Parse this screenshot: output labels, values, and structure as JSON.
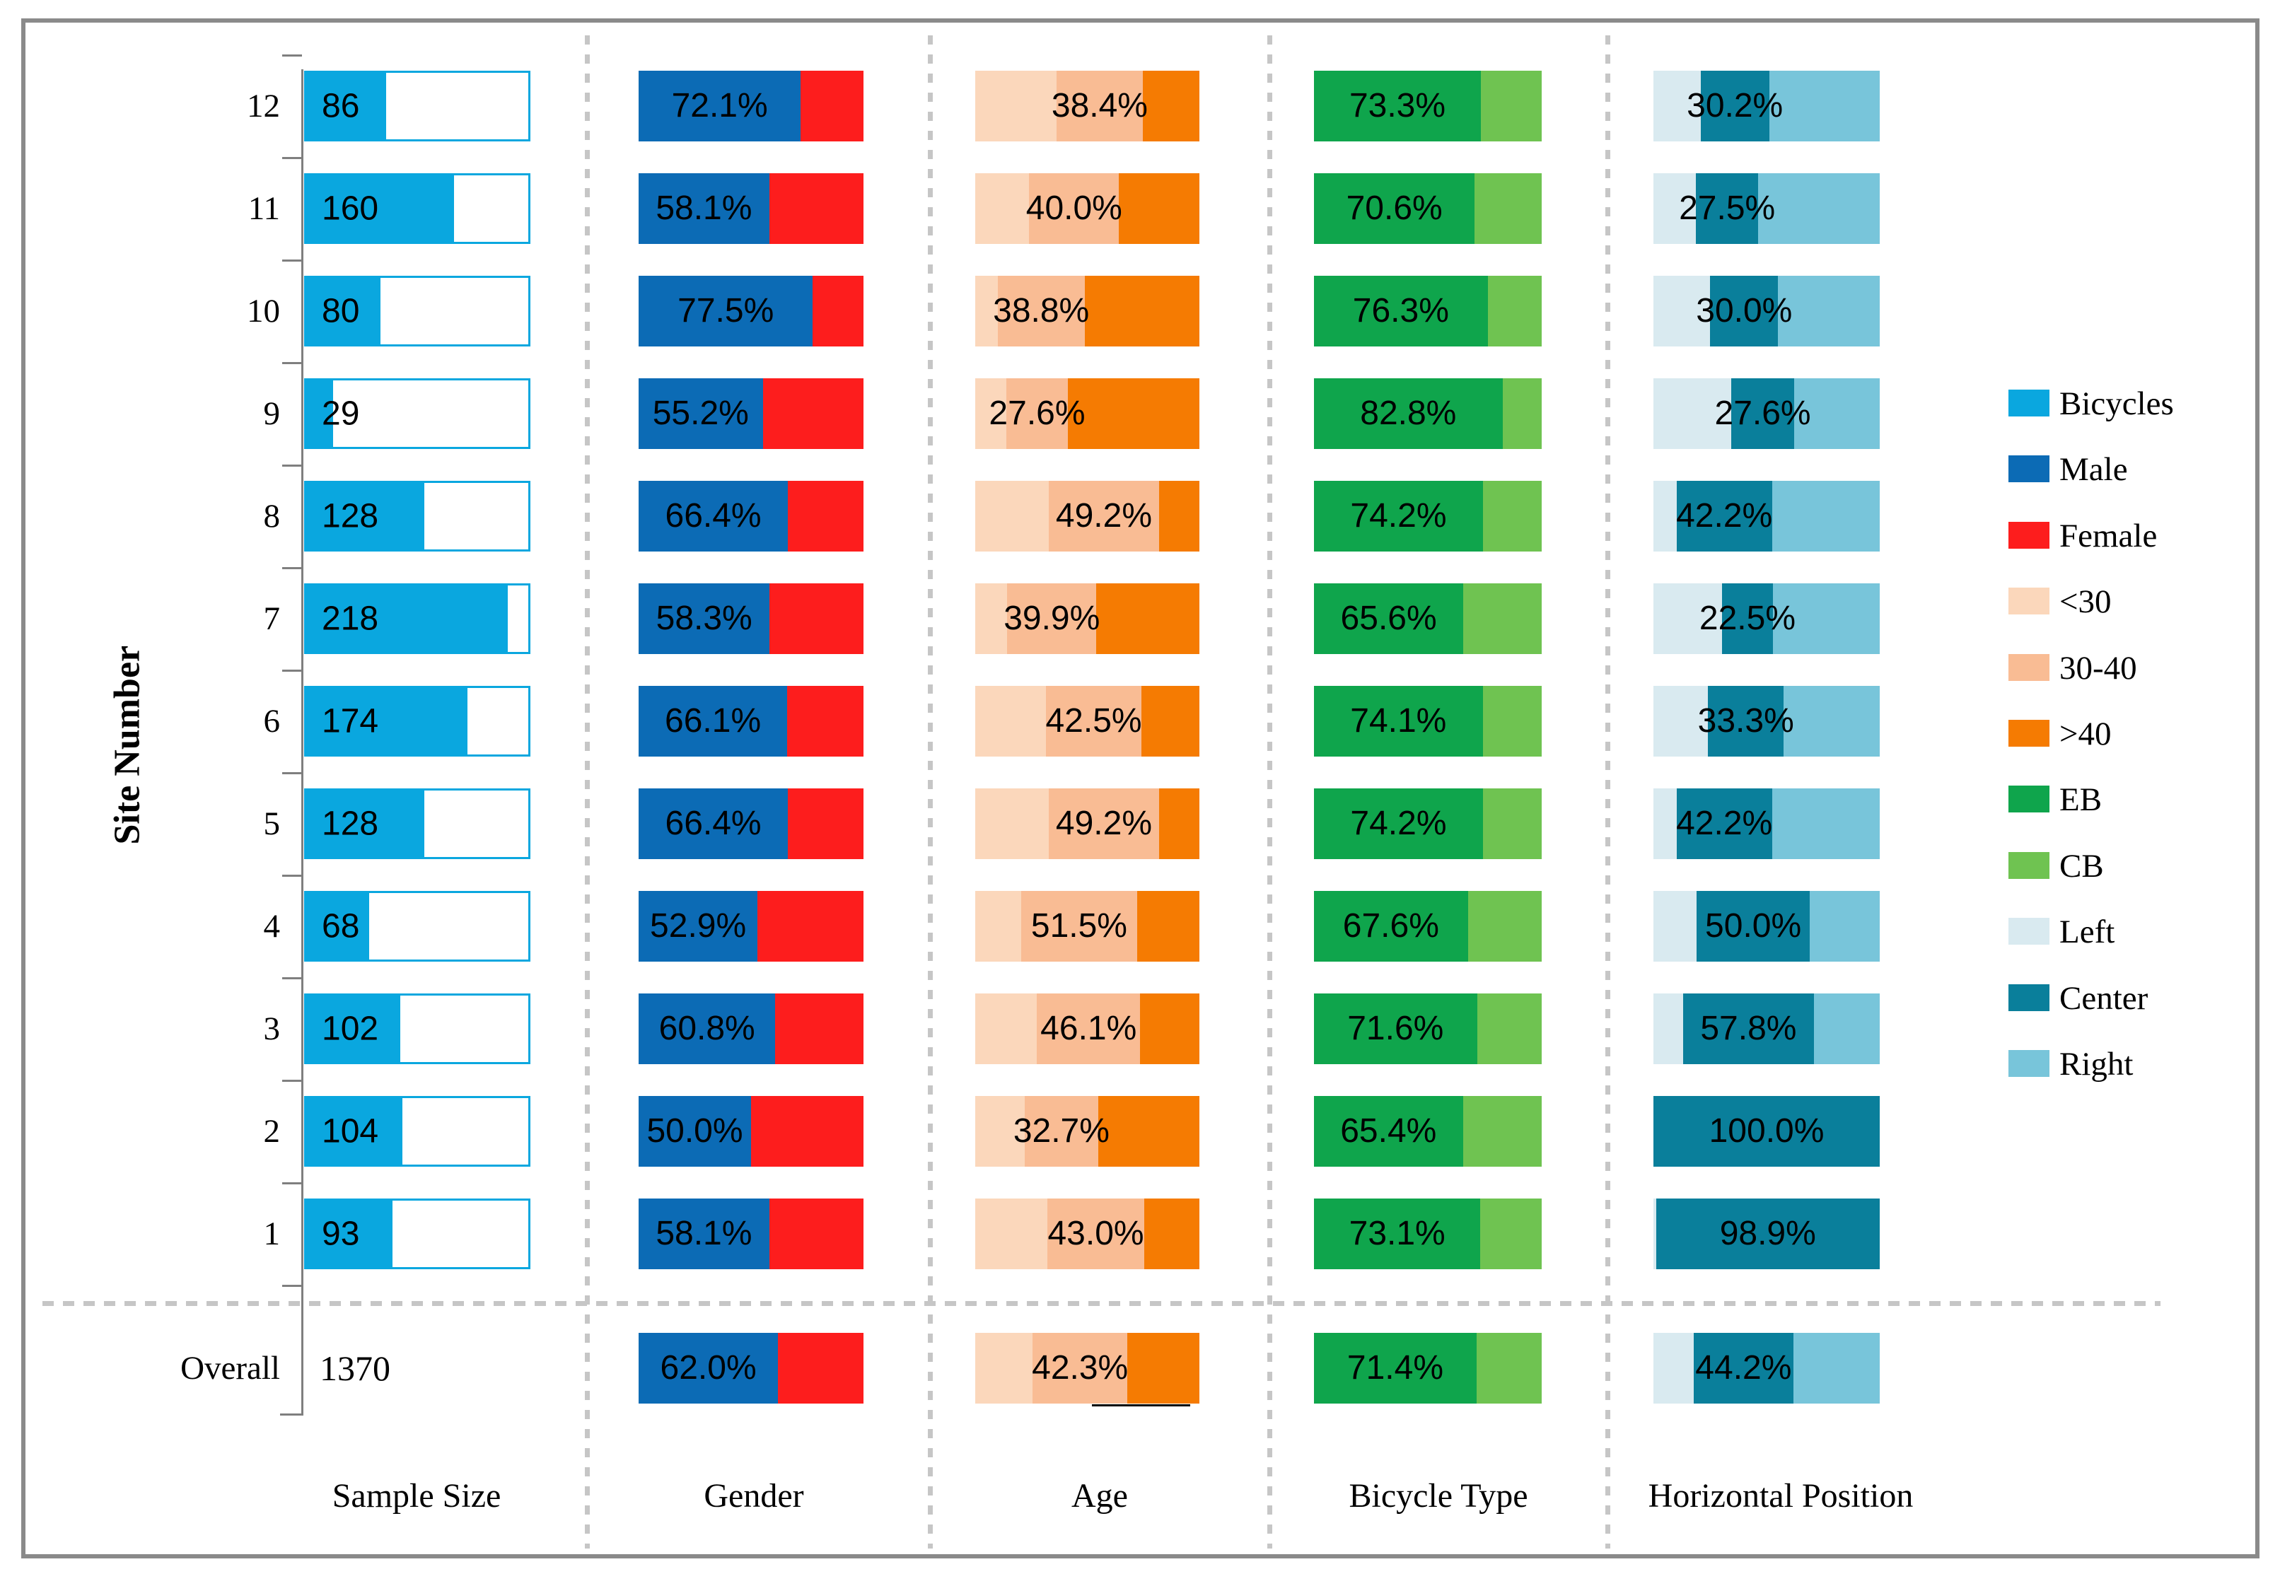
{
  "figure": {
    "y_axis_label": "Site Number",
    "column_labels": [
      "Sample Size",
      "Gender",
      "Age",
      "Bicycle Type",
      "Horizontal Position"
    ]
  },
  "colors": {
    "bicycles": "#0aa7df",
    "male": "#0c6bb5",
    "female": "#fd1d1d",
    "age_under30": "#fbd7bb",
    "age_30_40": "#f9bc94",
    "age_over40": "#f57b02",
    "eb": "#0fa54c",
    "cb": "#6fc351",
    "left": "#d9eaf0",
    "center": "#0a7f9b",
    "right": "#78c5da",
    "axis_gray": "#7f7f7f",
    "dash_gray": "#c6c6c6",
    "border_gray": "#8a8a8a"
  },
  "legend": [
    {
      "label": "Bicycles",
      "color": "bicycles"
    },
    {
      "label": "Male",
      "color": "male"
    },
    {
      "label": "Female",
      "color": "female"
    },
    {
      "label": "<30",
      "color": "age_under30"
    },
    {
      "label": "30-40",
      "color": "age_30_40"
    },
    {
      "label": ">40",
      "color": "age_over40"
    },
    {
      "label": "EB",
      "color": "eb"
    },
    {
      "label": "CB",
      "color": "cb"
    },
    {
      "label": "Left",
      "color": "left"
    },
    {
      "label": "Center",
      "color": "center"
    },
    {
      "label": "Right",
      "color": "right"
    }
  ],
  "chart_data": {
    "type": "bar",
    "orientation": "horizontal",
    "sample_axis_max": 240,
    "series_note": "Each site row shows: sample size (bicycles count, axis 0-240), gender split %, age split % (<30 / 30-40 / >40), bicycle type % (EB / CB), horizontal position % (Left / Center / Right). Printed labels: sample count, male %, 30-40 %, EB %, Center %.",
    "rows": [
      {
        "site": "12",
        "sample": 86,
        "sample_label": "86",
        "male": 72.1,
        "female": 27.9,
        "gender_label": "72.1%",
        "age": [
          36.3,
          38.4,
          25.3
        ],
        "age_label": "38.4%",
        "eb": 73.3,
        "cb": 26.7,
        "bicycle_label": "73.3%",
        "pos": [
          20.9,
          30.2,
          48.9
        ],
        "pos_label": "30.2%"
      },
      {
        "site": "11",
        "sample": 160,
        "sample_label": "160",
        "male": 58.1,
        "female": 41.9,
        "gender_label": "58.1%",
        "age": [
          24.1,
          40.0,
          35.9
        ],
        "age_label": "40.0%",
        "eb": 70.6,
        "cb": 29.4,
        "bicycle_label": "70.6%",
        "pos": [
          18.8,
          27.5,
          53.7
        ],
        "pos_label": "27.5%"
      },
      {
        "site": "10",
        "sample": 80,
        "sample_label": "80",
        "male": 77.5,
        "female": 22.5,
        "gender_label": "77.5%",
        "age": [
          10.0,
          38.8,
          51.2
        ],
        "age_label": "38.8%",
        "eb": 76.3,
        "cb": 23.7,
        "bicycle_label": "76.3%",
        "pos": [
          25.1,
          30.0,
          44.9
        ],
        "pos_label": "30.0%"
      },
      {
        "site": "9",
        "sample": 29,
        "sample_label": "29",
        "male": 55.2,
        "female": 44.8,
        "gender_label": "55.2%",
        "age": [
          13.8,
          27.6,
          58.6
        ],
        "age_label": "27.6%",
        "eb": 82.8,
        "cb": 17.2,
        "bicycle_label": "82.8%",
        "pos": [
          34.5,
          27.6,
          37.9
        ],
        "pos_label": "27.6%"
      },
      {
        "site": "8",
        "sample": 128,
        "sample_label": "128",
        "male": 66.4,
        "female": 33.6,
        "gender_label": "66.4%",
        "age": [
          32.8,
          49.2,
          18.0
        ],
        "age_label": "49.2%",
        "eb": 74.2,
        "cb": 25.8,
        "bicycle_label": "74.2%",
        "pos": [
          10.2,
          42.2,
          47.6
        ],
        "pos_label": "42.2%"
      },
      {
        "site": "7",
        "sample": 218,
        "sample_label": "218",
        "male": 58.3,
        "female": 41.7,
        "gender_label": "58.3%",
        "age": [
          14.2,
          39.9,
          45.9
        ],
        "age_label": "39.9%",
        "eb": 65.6,
        "cb": 34.4,
        "bicycle_label": "65.6%",
        "pos": [
          30.3,
          22.5,
          47.2
        ],
        "pos_label": "22.5%"
      },
      {
        "site": "6",
        "sample": 174,
        "sample_label": "174",
        "male": 66.1,
        "female": 33.9,
        "gender_label": "66.1%",
        "age": [
          31.6,
          42.5,
          25.9
        ],
        "age_label": "42.5%",
        "eb": 74.1,
        "cb": 25.9,
        "bicycle_label": "74.1%",
        "pos": [
          24.2,
          33.3,
          42.5
        ],
        "pos_label": "33.3%"
      },
      {
        "site": "5",
        "sample": 128,
        "sample_label": "128",
        "male": 66.4,
        "female": 33.6,
        "gender_label": "66.4%",
        "age": [
          32.8,
          49.2,
          18.0
        ],
        "age_label": "49.2%",
        "eb": 74.2,
        "cb": 25.8,
        "bicycle_label": "74.2%",
        "pos": [
          10.2,
          42.2,
          47.6
        ],
        "pos_label": "42.2%"
      },
      {
        "site": "4",
        "sample": 68,
        "sample_label": "68",
        "male": 52.9,
        "female": 47.1,
        "gender_label": "52.9%",
        "age": [
          20.6,
          51.5,
          27.9
        ],
        "age_label": "51.5%",
        "eb": 67.6,
        "cb": 32.4,
        "bicycle_label": "67.6%",
        "pos": [
          19.1,
          50.0,
          30.9
        ],
        "pos_label": "50.0%"
      },
      {
        "site": "3",
        "sample": 102,
        "sample_label": "102",
        "male": 60.8,
        "female": 39.2,
        "gender_label": "60.8%",
        "age": [
          27.5,
          46.1,
          26.4
        ],
        "age_label": "46.1%",
        "eb": 71.6,
        "cb": 28.4,
        "bicycle_label": "71.6%",
        "pos": [
          13.1,
          57.8,
          29.1
        ],
        "pos_label": "57.8%"
      },
      {
        "site": "2",
        "sample": 104,
        "sample_label": "104",
        "male": 50.0,
        "female": 50.0,
        "gender_label": "50.0%",
        "age": [
          22.1,
          32.7,
          45.2
        ],
        "age_label": "32.7%",
        "eb": 65.4,
        "cb": 34.6,
        "bicycle_label": "65.4%",
        "pos": [
          0.0,
          100.0,
          0.0
        ],
        "pos_label": "100.0%"
      },
      {
        "site": "1",
        "sample": 93,
        "sample_label": "93",
        "male": 58.1,
        "female": 41.9,
        "gender_label": "58.1%",
        "age": [
          32.3,
          43.0,
          24.7
        ],
        "age_label": "43.0%",
        "eb": 73.1,
        "cb": 26.9,
        "bicycle_label": "73.1%",
        "pos": [
          1.1,
          98.9,
          0.0
        ],
        "pos_label": "98.9%"
      },
      {
        "site": "Overall",
        "sample": 1370,
        "sample_label": "1370",
        "no_sample_bar": true,
        "underline": true,
        "male": 62.0,
        "female": 38.0,
        "gender_label": "62.0%",
        "age": [
          25.6,
          42.3,
          32.1
        ],
        "age_label": "42.3%",
        "eb": 71.4,
        "cb": 28.6,
        "bicycle_label": "71.4%",
        "pos": [
          17.7,
          44.2,
          38.1
        ],
        "pos_label": "44.2%"
      }
    ]
  }
}
